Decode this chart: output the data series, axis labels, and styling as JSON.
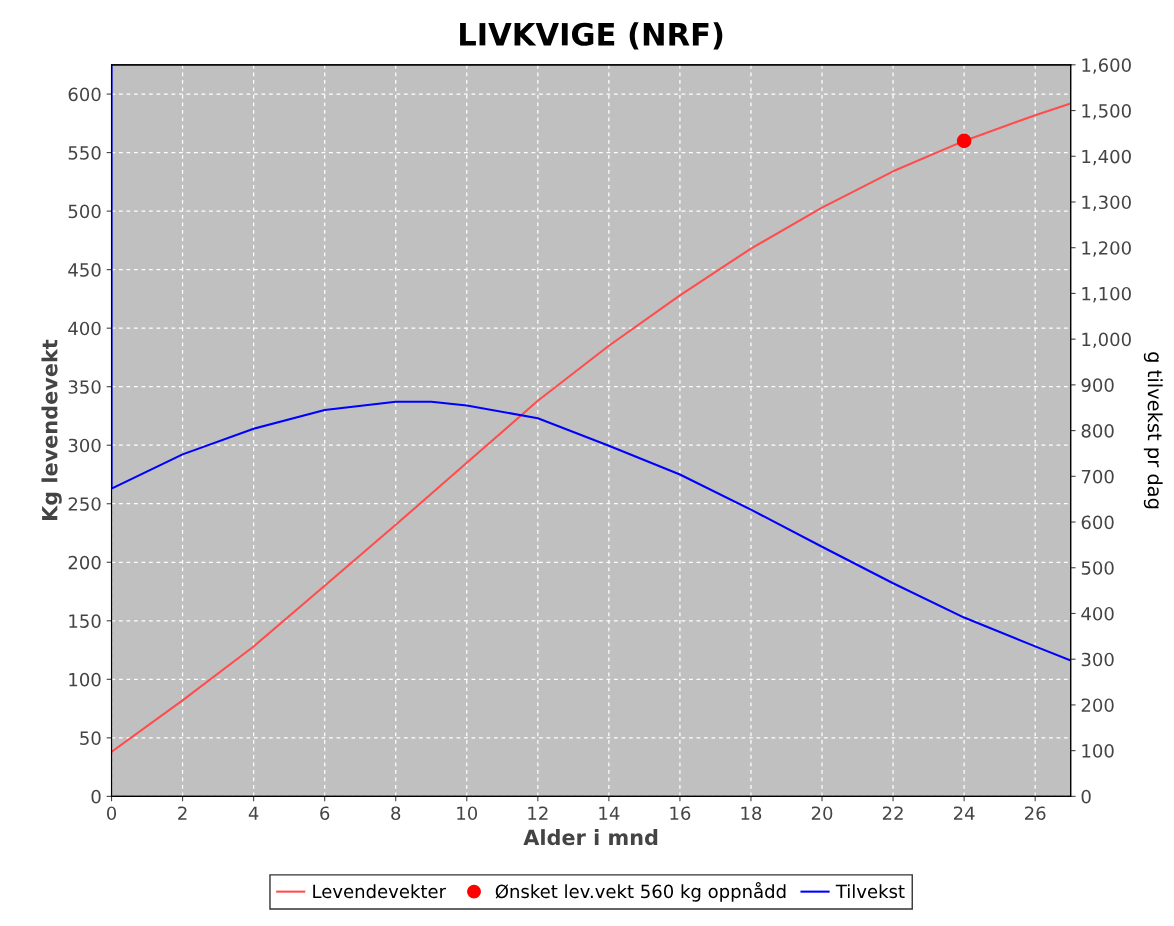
{
  "chart_data": {
    "type": "line",
    "title": "LIVKVIGE (NRF)",
    "xlabel": "Alder i mnd",
    "ylabel": "Kg levendevekt",
    "y2label": "g tilvekst pr dag",
    "xlim": [
      0,
      27
    ],
    "xticks": [
      0,
      2,
      4,
      6,
      8,
      10,
      12,
      14,
      16,
      18,
      20,
      22,
      24,
      26
    ],
    "ylim": [
      0,
      625
    ],
    "yticks": [
      0,
      50,
      100,
      150,
      200,
      250,
      300,
      350,
      400,
      450,
      500,
      550,
      600
    ],
    "y2lim": [
      0,
      1600
    ],
    "y2ticks": [
      0,
      100,
      200,
      300,
      400,
      500,
      600,
      700,
      800,
      900,
      {
        "value": 1000,
        "label": "1,000"
      },
      {
        "value": 1100,
        "label": "1,100"
      },
      {
        "value": 1200,
        "label": "1,200"
      },
      {
        "value": 1300,
        "label": "1,300"
      },
      {
        "value": 1400,
        "label": "1,400"
      },
      {
        "value": 1500,
        "label": "1,500"
      },
      {
        "value": 1600,
        "label": "1,600"
      }
    ],
    "grid": true,
    "legend": "bottom",
    "series": [
      {
        "name": "Levendevekter",
        "color": "#ff4d4d",
        "x": [
          0,
          2,
          4,
          6,
          8,
          10,
          12,
          14,
          16,
          18,
          20,
          22,
          24,
          26,
          27
        ],
        "values": [
          38,
          82,
          128,
          180,
          232,
          285,
          338,
          385,
          428,
          468,
          503,
          534,
          560,
          582,
          592
        ]
      },
      {
        "name": "Ønsket lev.vekt 560 kg oppnådd",
        "type": "scatter",
        "marker": "circle",
        "color": "#ff0000",
        "x": [
          24
        ],
        "values": [
          560
        ]
      },
      {
        "name": "Tilvekst",
        "axis": "y2",
        "color": "#0000ff",
        "x": [
          0,
          0,
          2,
          4,
          6,
          8,
          9,
          10,
          12,
          14,
          16,
          18,
          20,
          22,
          24,
          26,
          27
        ],
        "values": [
          1600,
          673,
          748,
          804,
          845,
          863,
          863,
          855,
          827,
          767,
          704,
          627,
          546,
          466,
          391,
          328,
          297
        ]
      }
    ]
  }
}
